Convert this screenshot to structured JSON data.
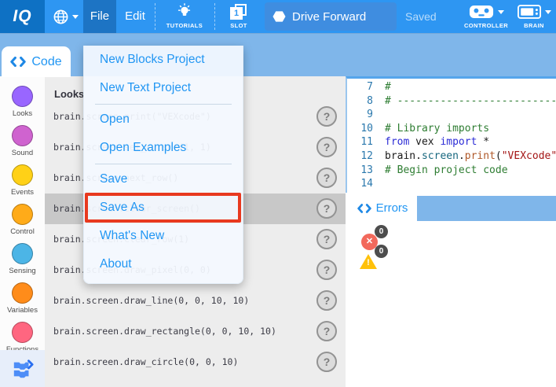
{
  "toolbar": {
    "logo_text": "IQ",
    "menus": [
      {
        "label": "File"
      },
      {
        "label": "Edit"
      }
    ],
    "tutorials_label": "TUTORIALS",
    "slot_label": "SLOT",
    "slot_number": "1",
    "project_name": "Drive Forward",
    "save_status": "Saved",
    "controller_label": "CONTROLLER",
    "brain_label": "BRAIN"
  },
  "tabs": {
    "code": "Code",
    "errors": "Errors"
  },
  "file_menu": {
    "items": [
      {
        "label": "New Blocks Project",
        "divider_after": false,
        "highlighted": false
      },
      {
        "label": "New Text Project",
        "divider_after": true,
        "highlighted": false
      },
      {
        "label": "Open",
        "divider_after": false,
        "highlighted": false
      },
      {
        "label": "Open Examples",
        "divider_after": true,
        "highlighted": false
      },
      {
        "label": "Save",
        "divider_after": false,
        "highlighted": false
      },
      {
        "label": "Save As",
        "divider_after": false,
        "highlighted": true
      },
      {
        "label": "What's New",
        "divider_after": false,
        "highlighted": false
      },
      {
        "label": "About",
        "divider_after": false,
        "highlighted": false
      }
    ]
  },
  "sidebar": {
    "categories": [
      {
        "label": "Looks",
        "color": "#9966FF"
      },
      {
        "label": "Sound",
        "color": "#CF63CF"
      },
      {
        "label": "Events",
        "color": "#FFD117"
      },
      {
        "label": "Control",
        "color": "#FFAB19"
      },
      {
        "label": "Sensing",
        "color": "#4CB5E6"
      },
      {
        "label": "Variables",
        "color": "#FF8C1A"
      },
      {
        "label": "Functions",
        "color": "#FF6680"
      }
    ]
  },
  "command_list": {
    "header": "Looks",
    "help_glyph": "?",
    "rows": [
      {
        "code": "brain.screen.print(\"VEXcode\")",
        "highlighted": false
      },
      {
        "code": "brain.screen.set_cursor(1, 1)",
        "highlighted": false
      },
      {
        "code": "brain.screen.next_row()",
        "highlighted": false
      },
      {
        "code": "brain.screen.clear_screen()",
        "highlighted": true
      },
      {
        "code": "brain.screen.clear_row(1)",
        "highlighted": false
      },
      {
        "code": "brain.screen.draw_pixel(0, 0)",
        "highlighted": false
      },
      {
        "code": "brain.screen.draw_line(0, 0, 10, 10)",
        "highlighted": false
      },
      {
        "code": "brain.screen.draw_rectangle(0, 0, 10, 10)",
        "highlighted": false
      },
      {
        "code": "brain.screen.draw_circle(0, 0, 10)",
        "highlighted": false
      }
    ]
  },
  "editor": {
    "syntax_colors": {
      "comment": "#2e7d32",
      "keyword": "#2b2bd6",
      "plain": "#1a1a1a",
      "property": "#17677f",
      "func": "#b0592a",
      "string": "#a31515"
    },
    "lines": [
      {
        "num": "7",
        "segments": [
          {
            "t": "#",
            "c": "comment"
          }
        ]
      },
      {
        "num": "8",
        "segments": [
          {
            "t": "# ------------------------------------------------------------",
            "c": "comment"
          }
        ]
      },
      {
        "num": "9",
        "segments": []
      },
      {
        "num": "10",
        "segments": [
          {
            "t": "# Library imports",
            "c": "comment"
          }
        ]
      },
      {
        "num": "11",
        "segments": [
          {
            "t": "from",
            "c": "keyword"
          },
          {
            "t": " vex ",
            "c": "plain"
          },
          {
            "t": "import",
            "c": "keyword"
          },
          {
            "t": " *",
            "c": "plain"
          }
        ]
      },
      {
        "num": "12",
        "segments": [
          {
            "t": "brain.",
            "c": "plain"
          },
          {
            "t": "screen",
            "c": "property"
          },
          {
            "t": ".",
            "c": "plain"
          },
          {
            "t": "print",
            "c": "func"
          },
          {
            "t": "(",
            "c": "plain"
          },
          {
            "t": "\"VEXcode\"",
            "c": "string"
          },
          {
            "t": ")",
            "c": "plain"
          }
        ]
      },
      {
        "num": "13",
        "segments": [
          {
            "t": "# Begin project code",
            "c": "comment"
          }
        ]
      },
      {
        "num": "14",
        "segments": []
      }
    ]
  },
  "errors_panel": {
    "error_glyph": "✕",
    "warning_glyph": "!",
    "error_count": "0",
    "warning_count": "0"
  },
  "colors": {
    "toolbar_blue": "#2e96f2",
    "logo_blue": "#0e71c4",
    "active_menu_blue": "#1d74c4",
    "tabbar_blue": "#7fb6ea",
    "menu_text_blue": "#2196f3",
    "highlight_red": "#e8391f",
    "row_highlight_gray": "#c8c8c8",
    "error_red": "#f2695c",
    "warning_yellow": "#ffc10a"
  }
}
